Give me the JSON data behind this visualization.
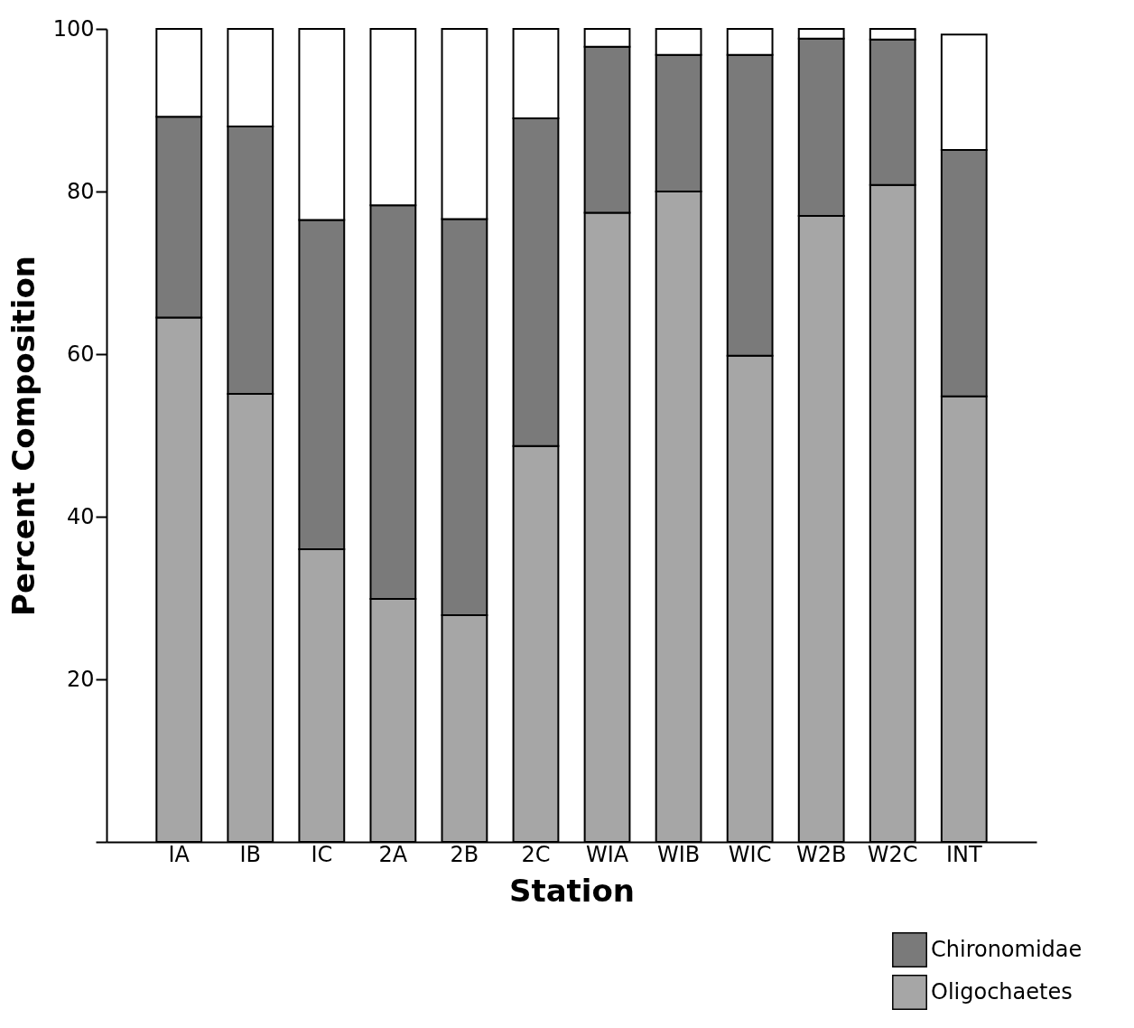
{
  "chart_data": {
    "type": "bar",
    "stacked": true,
    "xlabel": "Station",
    "ylabel": "Percent Composition",
    "categories": [
      "IA",
      "IB",
      "IC",
      "2A",
      "2B",
      "2C",
      "WIA",
      "WIB",
      "WIC",
      "W2B",
      "W2C",
      "INT"
    ],
    "series": [
      {
        "name": "Oligochaetes",
        "color": "#a6a6a6",
        "values": [
          64.5,
          55.1,
          36.0,
          29.9,
          27.9,
          48.7,
          77.4,
          80.0,
          59.8,
          77.0,
          80.8,
          54.8
        ]
      },
      {
        "name": "Chironomidae",
        "color": "#7a7a7a",
        "values": [
          24.7,
          32.9,
          40.5,
          48.4,
          48.7,
          40.3,
          20.4,
          16.8,
          37.0,
          21.8,
          17.9,
          30.3
        ]
      },
      {
        "color": "#ffffff",
        "values": [
          10.8,
          12.0,
          23.5,
          21.7,
          23.4,
          11.0,
          2.2,
          3.2,
          3.2,
          1.2,
          1.3,
          14.2
        ]
      }
    ],
    "ylim": [
      0,
      100
    ],
    "yticks": [
      {
        "value": 0,
        "label": null
      },
      20,
      40,
      60,
      80,
      100
    ],
    "grid": false,
    "legend": "bottom right"
  }
}
